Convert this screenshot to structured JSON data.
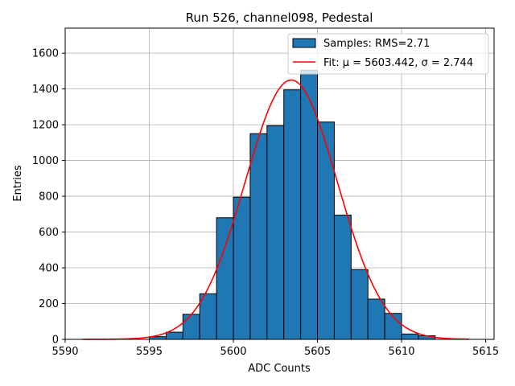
{
  "chart_data": {
    "type": "bar",
    "title": "Run 526, channel098, Pedestal",
    "xlabel": "ADC Counts",
    "ylabel": "Entries",
    "xlim": [
      5590,
      5615.5
    ],
    "ylim": [
      0,
      1740
    ],
    "xticks": [
      5590,
      5595,
      5600,
      5605,
      5610,
      5615
    ],
    "yticks": [
      0,
      200,
      400,
      600,
      800,
      1000,
      1200,
      1400,
      1600
    ],
    "grid": true,
    "legend_position": "top-right",
    "bin_width": 1,
    "bins": [
      {
        "x": 5595,
        "count": 15
      },
      {
        "x": 5596,
        "count": 40
      },
      {
        "x": 5597,
        "count": 140
      },
      {
        "x": 5598,
        "count": 255
      },
      {
        "x": 5599,
        "count": 680
      },
      {
        "x": 5600,
        "count": 795
      },
      {
        "x": 5601,
        "count": 1150
      },
      {
        "x": 5602,
        "count": 1195
      },
      {
        "x": 5603,
        "count": 1395
      },
      {
        "x": 5604,
        "count": 1505
      },
      {
        "x": 5605,
        "count": 1215
      },
      {
        "x": 5606,
        "count": 695
      },
      {
        "x": 5607,
        "count": 390
      },
      {
        "x": 5608,
        "count": 225
      },
      {
        "x": 5609,
        "count": 145
      },
      {
        "x": 5610,
        "count": 30
      },
      {
        "x": 5611,
        "count": 20
      }
    ],
    "series": [
      {
        "name": "Samples: RMS=2.71",
        "kind": "histogram",
        "color": "#1f77b4",
        "edge_color": "#000000"
      },
      {
        "name": "Fit: μ = 5603.442, σ = 2.744",
        "kind": "gaussian-fit",
        "color": "#ff0000",
        "mu": 5603.442,
        "sigma": 2.744,
        "amplitude": 1450,
        "x_range": [
          5591,
          5614
        ]
      }
    ]
  }
}
